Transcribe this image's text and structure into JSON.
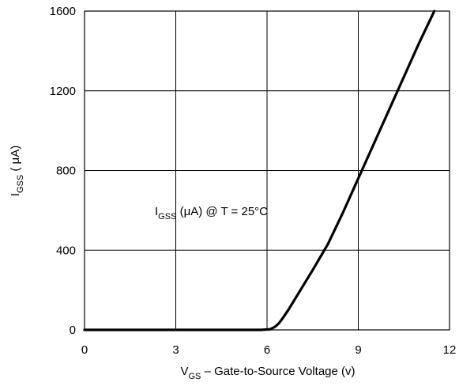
{
  "chart_data": {
    "type": "line",
    "title": "",
    "xlabel": {
      "main": "V",
      "sub": "GS",
      "rest": " – Gate-to-Source Voltage (v)"
    },
    "ylabel": {
      "main": "I",
      "sub": "GSS",
      "rest": " ( μA)"
    },
    "xlim": [
      0,
      12
    ],
    "ylim": [
      0,
      1600
    ],
    "xticks": [
      0,
      3,
      6,
      9,
      12
    ],
    "yticks": [
      0,
      400,
      800,
      1200,
      1600
    ],
    "xtick_labels": [
      "0",
      "3",
      "6",
      "9",
      "12"
    ],
    "ytick_labels": [
      "0",
      "400",
      "800",
      "1200",
      "1600"
    ],
    "grid": true,
    "legend": "none",
    "annotation": {
      "main": "I",
      "sub": "GSS",
      "rest": " (μA) @ T = 25°C"
    },
    "series": [
      {
        "x": [
          0,
          1,
          2,
          3,
          4,
          5,
          5.8,
          6.1,
          6.2,
          6.3,
          6.4,
          6.5,
          6.7,
          7.0,
          7.5,
          8.0,
          8.5,
          9.0,
          9.5,
          10.0,
          10.5,
          11.0,
          11.5
        ],
        "y": [
          0,
          0,
          0,
          0,
          0,
          0,
          0,
          3,
          10,
          20,
          35,
          55,
          100,
          175,
          300,
          430,
          590,
          760,
          930,
          1100,
          1270,
          1440,
          1600
        ]
      }
    ],
    "colors": {
      "line": "#000000",
      "grid": "#000000",
      "frame": "#000000"
    }
  }
}
